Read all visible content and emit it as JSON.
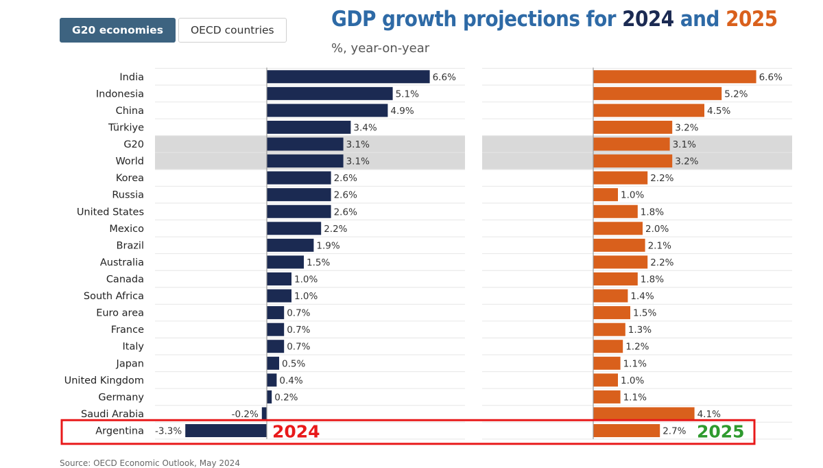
{
  "tabs": [
    {
      "label": "G20 economies",
      "active": true
    },
    {
      "label": "OECD countries",
      "active": false
    }
  ],
  "title": {
    "prefix": "GDP growth projections for ",
    "year1": "2024",
    "middle": " and ",
    "year2": "2025"
  },
  "subtitle": "%, year-on-year",
  "source": "Source: OECD Economic Outlook, May 2024",
  "colors": {
    "bar_2024": "#1b2a52",
    "bar_2025": "#d9601c",
    "title_text": "#2e6aa6",
    "highlight_row": "#d9d9d9",
    "annotation_box": "#e8191a",
    "annotation_2024": "#e8191a",
    "annotation_2025": "#2e9a2e"
  },
  "annotations": {
    "label_2024": "2024",
    "label_2025": "2025"
  },
  "chart_data": {
    "type": "bar",
    "orientation": "horizontal",
    "title": "GDP growth projections for 2024 and 2025",
    "subtitle": "%, year-on-year",
    "unit": "%",
    "highlighted": [
      "G20",
      "World"
    ],
    "annotated": [
      "Argentina"
    ],
    "categories": [
      "India",
      "Indonesia",
      "China",
      "Türkiye",
      "G20",
      "World",
      "Korea",
      "Russia",
      "United States",
      "Mexico",
      "Brazil",
      "Australia",
      "Canada",
      "South Africa",
      "Euro area",
      "France",
      "Italy",
      "Japan",
      "United Kingdom",
      "Germany",
      "Saudi Arabia",
      "Argentina"
    ],
    "series": [
      {
        "name": "2024",
        "values": [
          6.6,
          5.1,
          4.9,
          3.4,
          3.1,
          3.1,
          2.6,
          2.6,
          2.6,
          2.2,
          1.9,
          1.5,
          1.0,
          1.0,
          0.7,
          0.7,
          0.7,
          0.5,
          0.4,
          0.2,
          -0.2,
          -3.3
        ]
      },
      {
        "name": "2025",
        "values": [
          6.6,
          5.2,
          4.5,
          3.2,
          3.1,
          3.2,
          2.2,
          1.0,
          1.8,
          2.0,
          2.1,
          2.2,
          1.8,
          1.4,
          1.5,
          1.3,
          1.2,
          1.1,
          1.0,
          1.1,
          4.1,
          2.7
        ]
      }
    ],
    "xlabel": "",
    "ylabel": ""
  }
}
